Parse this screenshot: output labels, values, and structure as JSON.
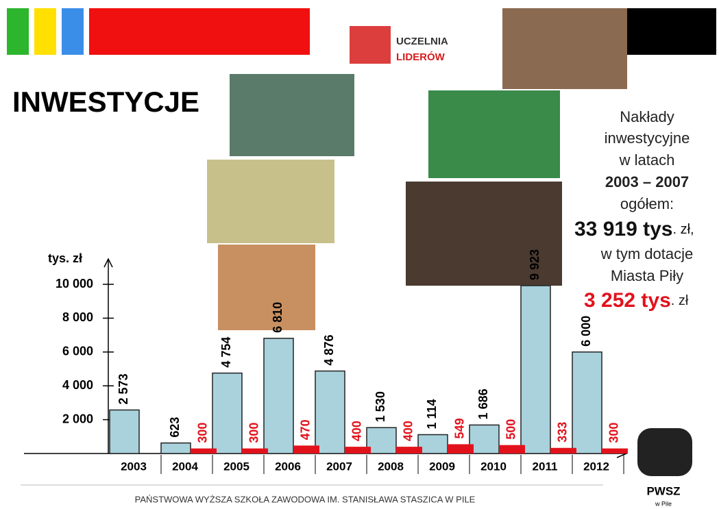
{
  "header": {
    "logo_line1": "UCZELNIA",
    "logo_line2": "LIDERÓW"
  },
  "summary": {
    "line1": "Nakłady",
    "line2": "inwestycyjne",
    "line3": "w latach",
    "line4": "2003 – 2007",
    "line5": "ogółem:",
    "total": "33 919 tys",
    "total_unit": ". zł,",
    "line7": "w tym dotacje",
    "line8": "Miasta Piły",
    "subsidy": "3 252 tys",
    "subsidy_unit": ". zł"
  },
  "footer": {
    "text": "PAŃSTWOWA WYŻSZA SZKOŁA ZAWODOWA IM. STANISŁAWA STASZICA W PILE",
    "logo": "PWSZ",
    "logo_sub": "w Pile"
  },
  "chart_data": {
    "type": "bar",
    "title": "INWESTYCJE",
    "y_label": "tys. zł",
    "categories": [
      "2003",
      "2004",
      "2005",
      "2006",
      "2007",
      "2008",
      "2009",
      "2010",
      "2011",
      "2012"
    ],
    "series": [
      {
        "color": "#a9d2dc",
        "label_color": "#000000",
        "values": [
          2573,
          623,
          4754,
          6810,
          4876,
          1530,
          1114,
          1686,
          9923,
          6000
        ],
        "value_labels": [
          "2 573",
          "623",
          "4 754",
          "6 810",
          "4 876",
          "1 530",
          "1 114",
          "1 686",
          "9 923",
          "6 000"
        ]
      },
      {
        "color": "#e2121c",
        "label_color": "#e2121c",
        "values": [
          null,
          300,
          300,
          470,
          400,
          400,
          549,
          500,
          333,
          300
        ]
      }
    ],
    "ylim": [
      0,
      11500
    ],
    "yticks": [
      {
        "value": 2000,
        "label": "2 000"
      },
      {
        "value": 4000,
        "label": "4 000"
      },
      {
        "value": 6000,
        "label": "6 000"
      },
      {
        "value": 8000,
        "label": "8 000"
      },
      {
        "value": 10000,
        "label": "10 000"
      }
    ]
  }
}
